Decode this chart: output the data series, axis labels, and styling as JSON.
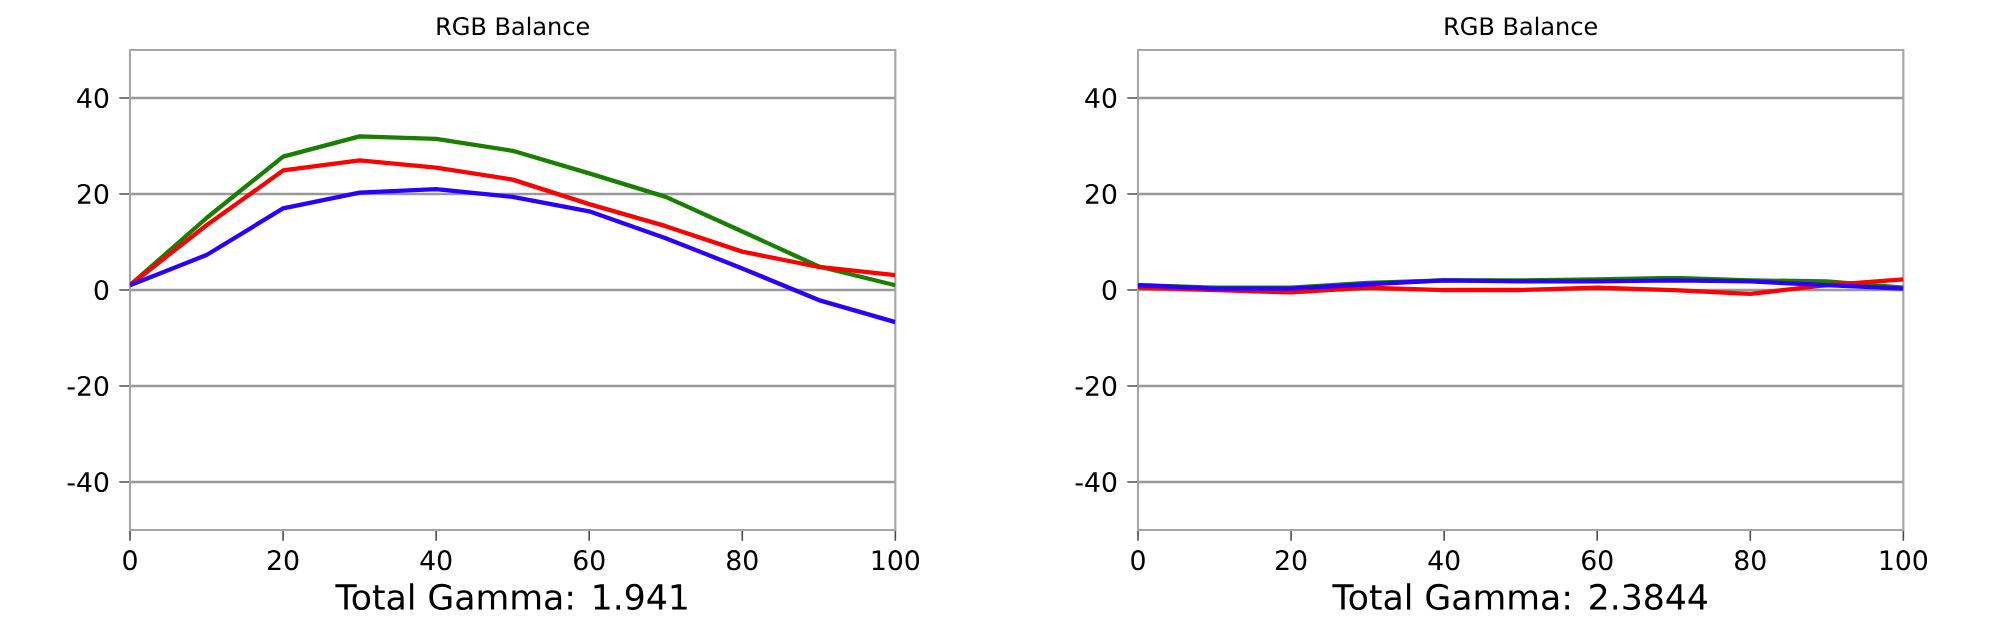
{
  "chart_data": [
    {
      "type": "line",
      "title": "RGB Balance",
      "xlabel": "Total Gamma: 1.941",
      "x": [
        0,
        10,
        20,
        30,
        40,
        50,
        60,
        70,
        80,
        90,
        100
      ],
      "xlim": [
        0,
        100
      ],
      "xticks": [
        0,
        20,
        40,
        60,
        80,
        100
      ],
      "ylim": [
        -50,
        50
      ],
      "yticks": [
        -40,
        -20,
        0,
        20,
        40
      ],
      "grid": "y",
      "marker": "none",
      "line_style": "solid",
      "series": [
        {
          "color": "#1a7f00",
          "values": [
            1,
            15,
            27.8,
            32,
            31.5,
            29,
            24.3,
            19.4,
            12.2,
            4.9,
            1
          ]
        },
        {
          "color": "#ff0000",
          "values": [
            1,
            13.5,
            24.9,
            27,
            25.5,
            23,
            17.9,
            13.3,
            8,
            4.8,
            3.1
          ]
        },
        {
          "color": "#2b00ff",
          "values": [
            1,
            7.3,
            17,
            20.3,
            21,
            19.4,
            16.4,
            10.8,
            4.5,
            -2.1,
            -6.7
          ]
        }
      ]
    },
    {
      "type": "line",
      "title": "RGB Balance",
      "xlabel": "Total Gamma: 2.3844",
      "x": [
        0,
        10,
        20,
        30,
        40,
        50,
        60,
        70,
        80,
        90,
        100
      ],
      "xlim": [
        0,
        100
      ],
      "xticks": [
        0,
        20,
        40,
        60,
        80,
        100
      ],
      "ylim": [
        -50,
        50
      ],
      "yticks": [
        -40,
        -20,
        0,
        20,
        40
      ],
      "grid": "y",
      "marker": "none",
      "line_style": "solid",
      "series": [
        {
          "color": "#1a7f00",
          "values": [
            1,
            0.5,
            0.5,
            1.5,
            2,
            2,
            2.2,
            2.5,
            2,
            1.8,
            0.5
          ]
        },
        {
          "color": "#ff0000",
          "values": [
            0.5,
            0,
            -0.5,
            0.5,
            0,
            0,
            0.5,
            0,
            -0.8,
            1,
            2.2
          ]
        },
        {
          "color": "#2b00ff",
          "values": [
            1,
            0.3,
            0.3,
            1.2,
            2,
            1.8,
            1.8,
            2,
            1.8,
            1,
            0.3
          ]
        }
      ]
    }
  ]
}
